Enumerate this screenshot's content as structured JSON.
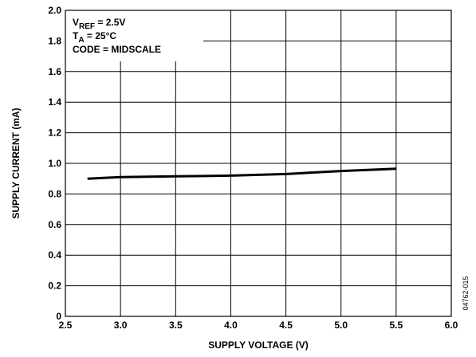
{
  "chart_data": {
    "type": "line",
    "title": "",
    "xlabel": "SUPPLY VOLTAGE (V)",
    "ylabel": "SUPPLY CURRENT (mA)",
    "xlim": [
      2.5,
      6.0
    ],
    "ylim": [
      0,
      2.0
    ],
    "x_ticks": [
      "2.5",
      "3.0",
      "3.5",
      "4.0",
      "4.5",
      "5.0",
      "5.5",
      "6.0"
    ],
    "y_ticks": [
      "0",
      "0.2",
      "0.4",
      "0.6",
      "0.8",
      "1.0",
      "1.2",
      "1.4",
      "1.6",
      "1.8",
      "2.0"
    ],
    "grid": true,
    "legend": "none",
    "series": [
      {
        "x": [
          2.7,
          3.0,
          3.5,
          4.0,
          4.5,
          5.0,
          5.5
        ],
        "y": [
          0.9,
          0.91,
          0.915,
          0.92,
          0.93,
          0.95,
          0.965
        ],
        "color": "#000000"
      }
    ],
    "annotations": {
      "box_position": "top-left",
      "lines": [
        {
          "main": "V",
          "sub": "REF",
          "rest": " = 2.5V"
        },
        {
          "main": "T",
          "sub": "A",
          "rest": " = 25°C"
        },
        {
          "main": "CODE = MIDSCALE",
          "sub": "",
          "rest": ""
        }
      ]
    },
    "figure_id": "04762-015"
  }
}
